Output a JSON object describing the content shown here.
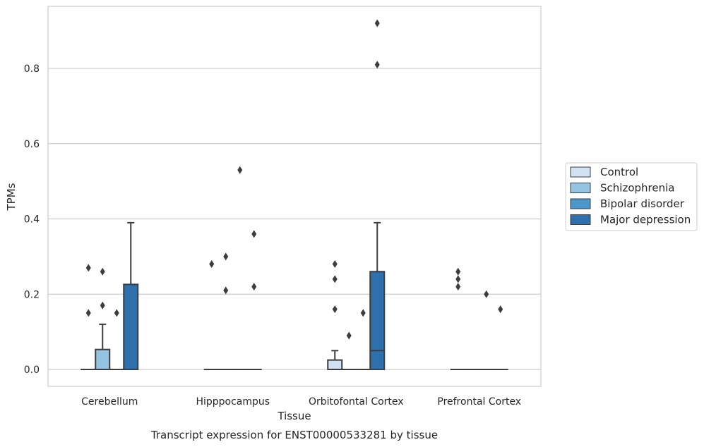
{
  "chart_data": {
    "type": "box",
    "title": "Transcript expression for ENST00000533281 by tissue",
    "xlabel": "Tissue",
    "ylabel": "TPMs",
    "ylim": [
      -0.045,
      0.965
    ],
    "yticks": [
      0.0,
      0.2,
      0.4,
      0.6,
      0.8
    ],
    "ytick_labels": [
      "0.0",
      "0.2",
      "0.4",
      "0.6",
      "0.8"
    ],
    "grid": true,
    "legend_position": "right",
    "categories": [
      "Cerebellum",
      "Hipppocampus",
      "Orbitofontal Cortex",
      "Prefrontal Cortex"
    ],
    "series": [
      {
        "name": "Control",
        "color": "#d0e1f2",
        "boxes": [
          {
            "q1": 0,
            "median": 0,
            "q3": 0,
            "whislo": 0,
            "whishi": 0,
            "fliers": [
              0.15,
              0.27
            ]
          },
          {
            "q1": 0,
            "median": 0,
            "q3": 0,
            "whislo": 0,
            "whishi": 0,
            "fliers": [
              0.28
            ]
          },
          {
            "q1": 0,
            "median": 0,
            "q3": 0.025,
            "whislo": 0,
            "whishi": 0.05,
            "fliers": [
              0.16,
              0.24,
              0.28
            ]
          },
          {
            "q1": 0,
            "median": 0,
            "q3": 0,
            "whislo": 0,
            "whishi": 0,
            "fliers": [
              0.22,
              0.24,
              0.26
            ]
          }
        ]
      },
      {
        "name": "Schizophrenia",
        "color": "#94c4df",
        "boxes": [
          {
            "q1": 0,
            "median": 0,
            "q3": 0.053,
            "whislo": 0,
            "whishi": 0.12,
            "fliers": [
              0.17,
              0.26
            ]
          },
          {
            "q1": 0,
            "median": 0,
            "q3": 0,
            "whislo": 0,
            "whishi": 0,
            "fliers": [
              0.21,
              0.3
            ]
          },
          {
            "q1": 0,
            "median": 0,
            "q3": 0,
            "whislo": 0,
            "whishi": 0,
            "fliers": [
              0.09
            ]
          },
          {
            "q1": 0,
            "median": 0,
            "q3": 0,
            "whislo": 0,
            "whishi": 0,
            "fliers": []
          }
        ]
      },
      {
        "name": "Bipolar disorder",
        "color": "#4a98c9",
        "boxes": [
          {
            "q1": 0,
            "median": 0,
            "q3": 0,
            "whislo": 0,
            "whishi": 0,
            "fliers": [
              0.15
            ]
          },
          {
            "q1": 0,
            "median": 0,
            "q3": 0,
            "whislo": 0,
            "whishi": 0,
            "fliers": [
              0.53
            ]
          },
          {
            "q1": 0,
            "median": 0,
            "q3": 0,
            "whislo": 0,
            "whishi": 0,
            "fliers": [
              0.15
            ]
          },
          {
            "q1": 0,
            "median": 0,
            "q3": 0,
            "whislo": 0,
            "whishi": 0,
            "fliers": [
              0.2
            ]
          }
        ]
      },
      {
        "name": "Major depression",
        "color": "#2e6fad",
        "boxes": [
          {
            "q1": 0,
            "median": 0,
            "q3": 0.226,
            "whislo": 0,
            "whishi": 0.39,
            "fliers": []
          },
          {
            "q1": 0,
            "median": 0,
            "q3": 0,
            "whislo": 0,
            "whishi": 0,
            "fliers": [
              0.22,
              0.36
            ]
          },
          {
            "q1": 0,
            "median": 0.05,
            "q3": 0.26,
            "whislo": 0,
            "whishi": 0.39,
            "fliers": [
              0.81,
              0.92
            ]
          },
          {
            "q1": 0,
            "median": 0,
            "q3": 0,
            "whislo": 0,
            "whishi": 0,
            "fliers": [
              0.16
            ]
          }
        ]
      }
    ]
  }
}
